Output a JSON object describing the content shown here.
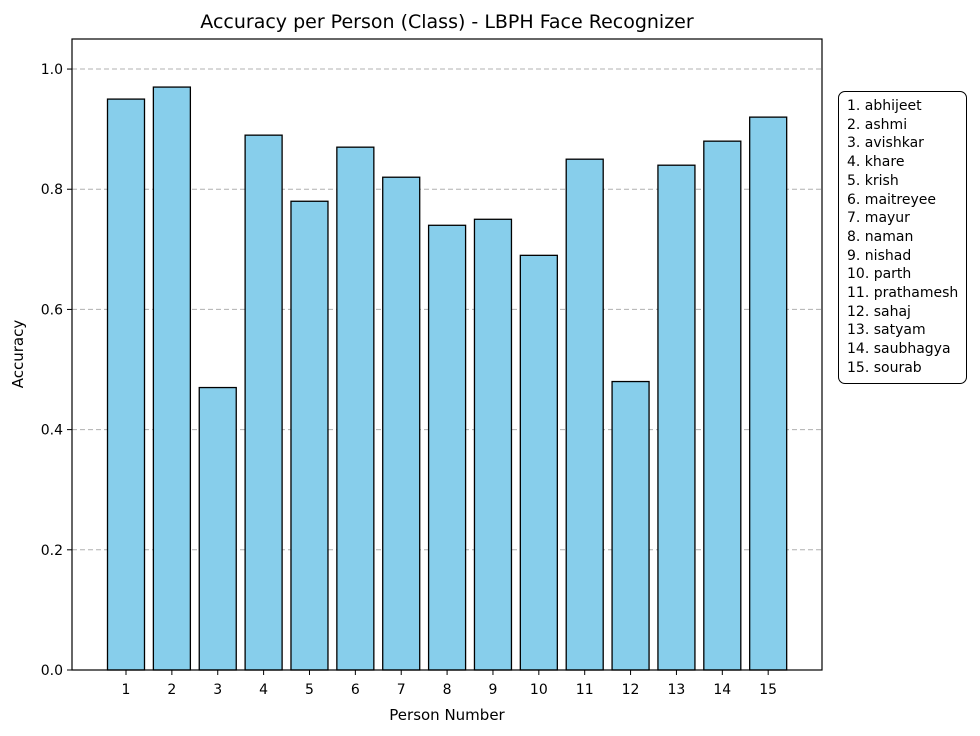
{
  "chart_data": {
    "type": "bar",
    "title": "Accuracy per Person (Class) - LBPH Face Recognizer",
    "xlabel": "Person Number",
    "ylabel": "Accuracy",
    "categories": [
      "1",
      "2",
      "3",
      "4",
      "5",
      "6",
      "7",
      "8",
      "9",
      "10",
      "11",
      "12",
      "13",
      "14",
      "15"
    ],
    "values": [
      0.95,
      0.97,
      0.47,
      0.89,
      0.78,
      0.87,
      0.82,
      0.74,
      0.75,
      0.69,
      0.85,
      0.48,
      0.84,
      0.88,
      0.92
    ],
    "ylim": [
      0,
      1.05
    ],
    "yticks": [
      "0.0",
      "0.2",
      "0.4",
      "0.6",
      "0.8",
      "1.0"
    ],
    "grid": "y-axis dashed",
    "bar_color": "#87CEEB",
    "bar_edge_color": "#000000",
    "legend_position": "right",
    "legend_items": [
      "1. abhijeet",
      "2. ashmi",
      "3. avishkar",
      "4. khare",
      "5. krish",
      "6. maitreyee",
      "7. mayur",
      "8. naman",
      "9. nishad",
      "10. parth",
      "11. prathamesh",
      "12. sahaj",
      "13. satyam",
      "14. saubhagya",
      "15. sourab"
    ]
  }
}
